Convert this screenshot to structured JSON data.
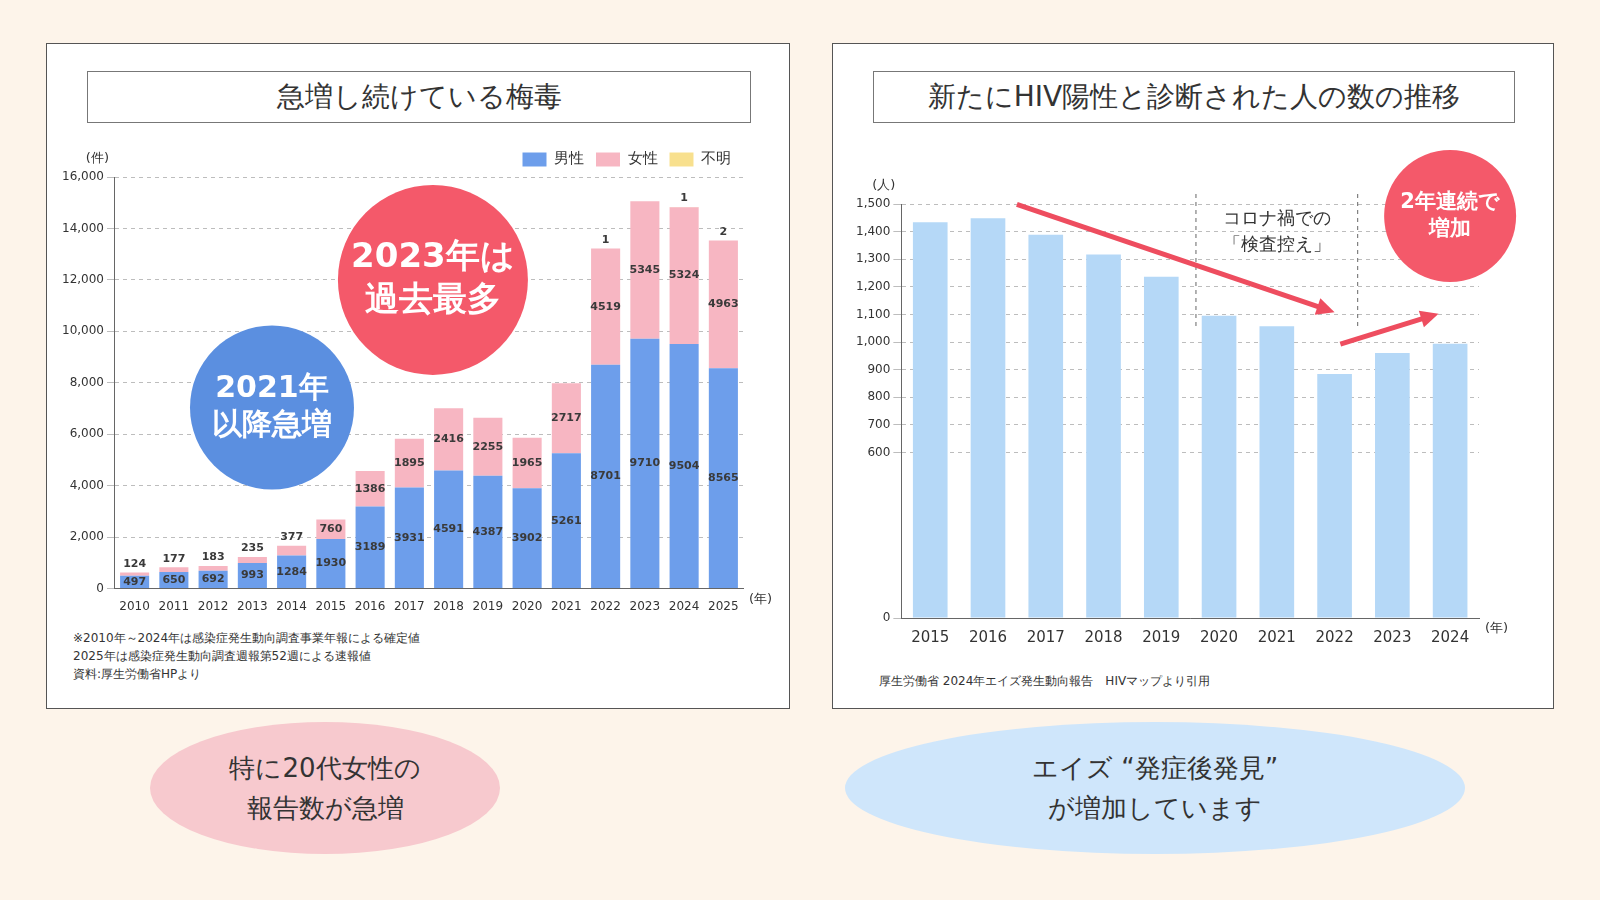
{
  "chart_data": [
    {
      "type": "bar",
      "title": "急増し続けている梅毒",
      "categories": [
        "2010",
        "2011",
        "2012",
        "2013",
        "2014",
        "2015",
        "2016",
        "2017",
        "2018",
        "2019",
        "2020",
        "2021",
        "2022",
        "2023",
        "2024",
        "2025"
      ],
      "series": [
        {
          "name": "男性",
          "color": "#6d9eeb",
          "values": [
            497,
            650,
            692,
            993,
            1284,
            1930,
            3189,
            3931,
            4591,
            4387,
            3902,
            5261,
            8701,
            9710,
            9504,
            8565
          ]
        },
        {
          "name": "女性",
          "color": "#f7b6c2",
          "values": [
            124,
            177,
            183,
            235,
            377,
            760,
            1386,
            1895,
            2416,
            2255,
            1965,
            2717,
            4519,
            5345,
            5324,
            4963
          ]
        },
        {
          "name": "不明",
          "color": "#f8e08e",
          "values": [
            null,
            null,
            null,
            null,
            null,
            null,
            null,
            null,
            null,
            null,
            null,
            null,
            1,
            null,
            1,
            2
          ]
        }
      ],
      "stacked": true,
      "data_labels": true,
      "legend": "top right",
      "grid": true,
      "ylim": [
        0,
        16000
      ],
      "yticks": [
        0,
        {
          "value": 2000,
          "label": "2,000"
        },
        {
          "value": 4000,
          "label": "4,000"
        },
        {
          "value": 6000,
          "label": "6,000"
        },
        {
          "value": 8000,
          "label": "8,000"
        },
        {
          "value": 10000,
          "label": "10,000"
        },
        {
          "value": 12000,
          "label": "12,000"
        },
        {
          "value": 14000,
          "label": "14,000"
        },
        {
          "value": 16000,
          "label": "16,000"
        }
      ],
      "ylabel": "(件)",
      "xlabel": "(年)",
      "annotations": [
        {
          "text": [
            "2023年は",
            "過去最多"
          ],
          "color": "#f4596a"
        },
        {
          "text": [
            "2021年",
            "以降急増"
          ],
          "color": "#5b8fe0"
        }
      ],
      "notes": [
        "※2010年～2024年は感染症発生動向調査事業年報による確定値",
        "2025年は感染症発生動向調査週報第52週による速報値",
        "資料:厚生労働省HPより"
      ],
      "callout": [
        "特に20代女性の",
        "報告数が急増"
      ]
    },
    {
      "type": "bar",
      "title": "新たにHIV陽性と診断された人の数の推移",
      "categories": [
        "2015",
        "2016",
        "2017",
        "2018",
        "2019",
        "2020",
        "2021",
        "2022",
        "2023",
        "2024"
      ],
      "values": [
        1434,
        1448,
        1389,
        1317,
        1236,
        1095,
        1057,
        884,
        960,
        994
      ],
      "color": "#b5d8f7",
      "grid": true,
      "ylim": [
        0,
        1500
      ],
      "yticks": [
        0,
        600,
        700,
        800,
        900,
        {
          "value": 1000,
          "label": "1,000"
        },
        {
          "value": 1100,
          "label": "1,100"
        },
        {
          "value": 1200,
          "label": "1,200"
        },
        {
          "value": 1300,
          "label": "1,300"
        },
        {
          "value": 1400,
          "label": "1,400"
        },
        {
          "value": 1500,
          "label": "1,500"
        }
      ],
      "ylabel": "(人)",
      "xlabel": "(年)",
      "annotations": [
        {
          "text": [
            "コロナ禍での",
            "「検査控え」"
          ]
        },
        {
          "text": [
            "2年連続で",
            "増加"
          ],
          "color": "#f4596a"
        }
      ],
      "notes": [
        "厚生労働省 2024年エイズ発生動向報告　HIVマップより引用"
      ],
      "callout": [
        "エイズ “発症後発見”",
        "が増加しています"
      ]
    }
  ]
}
